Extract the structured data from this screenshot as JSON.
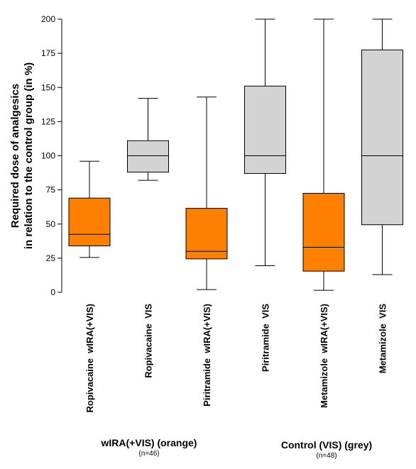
{
  "chart_data": {
    "type": "boxplot",
    "ylabel": [
      "Required dose of analgesics",
      "in relation to the control group (in %)"
    ],
    "ylim": [
      0,
      200
    ],
    "yticks": [
      0,
      25,
      50,
      75,
      100,
      125,
      150,
      175,
      200
    ],
    "grid": false,
    "categories": [
      "Ropivacaine  wIRA(+VIS)",
      "Ropivacaine  VIS",
      "Piritramide  wIRA(+VIS)",
      "Piritramide  VIS",
      "Metamizole  wIRA(+VIS)",
      "Metamizole  VIS"
    ],
    "boxes": [
      {
        "group": "wIRA",
        "min": 25.5,
        "q1": 34,
        "median": 42.5,
        "q3": 69,
        "max": 96
      },
      {
        "group": "control",
        "min": 82,
        "q1": 88,
        "median": 100,
        "q3": 111,
        "max": 142
      },
      {
        "group": "wIRA",
        "min": 2,
        "q1": 24.5,
        "median": 30,
        "q3": 61.5,
        "max": 143
      },
      {
        "group": "control",
        "min": 19.5,
        "q1": 87,
        "median": 100,
        "q3": 151,
        "max": 200
      },
      {
        "group": "wIRA",
        "min": 1.5,
        "q1": 15.5,
        "median": 33,
        "q3": 72.5,
        "max": 200
      },
      {
        "group": "control",
        "min": 13,
        "q1": 49.5,
        "median": 100,
        "q3": 177.5,
        "max": 200
      }
    ],
    "colors": {
      "wIRA": "#ff7f00",
      "control": "#d3d3d3"
    }
  },
  "groups": [
    {
      "label": "wIRA(+VIS) (orange)",
      "n": "(n=46)"
    },
    {
      "label": "Control (VIS) (grey)",
      "n": "(n=48)"
    }
  ]
}
